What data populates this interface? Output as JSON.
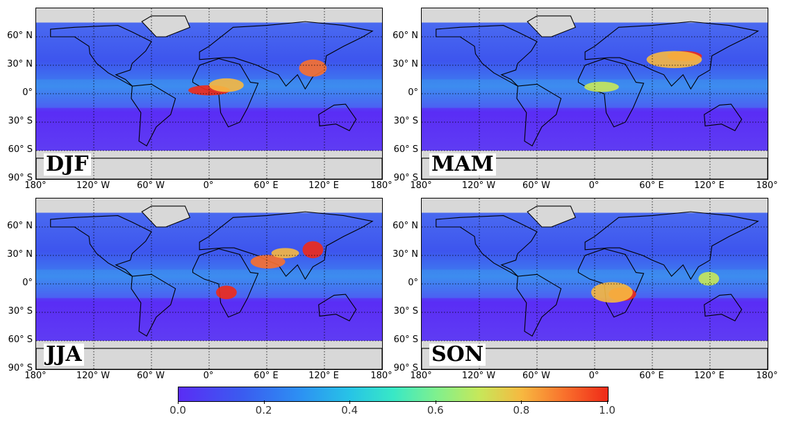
{
  "panels": [
    {
      "season": "DJF",
      "accent": "equatorial Africa"
    },
    {
      "season": "MAM",
      "accent": "South / East Asia"
    },
    {
      "season": "JJA",
      "accent": "Central Africa, Arabia, China"
    },
    {
      "season": "SON",
      "accent": "Southern Africa"
    }
  ],
  "lat_ticks": [
    "60° N",
    "30° N",
    "0°",
    "30° S",
    "60° S",
    "90° S"
  ],
  "lon_ticks": [
    "180°",
    "120° W",
    "60° W",
    "0°",
    "60° E",
    "120° E",
    "180°"
  ],
  "colorbar": {
    "ticks": [
      "0.0",
      "0.2",
      "0.4",
      "0.6",
      "0.8",
      "1.0"
    ],
    "range": [
      0.0,
      1.0
    ],
    "colors": [
      "#5a2df5",
      "#2d8ff3",
      "#38e8c6",
      "#c6e85a",
      "#f9702c",
      "#ef2a18"
    ]
  }
}
